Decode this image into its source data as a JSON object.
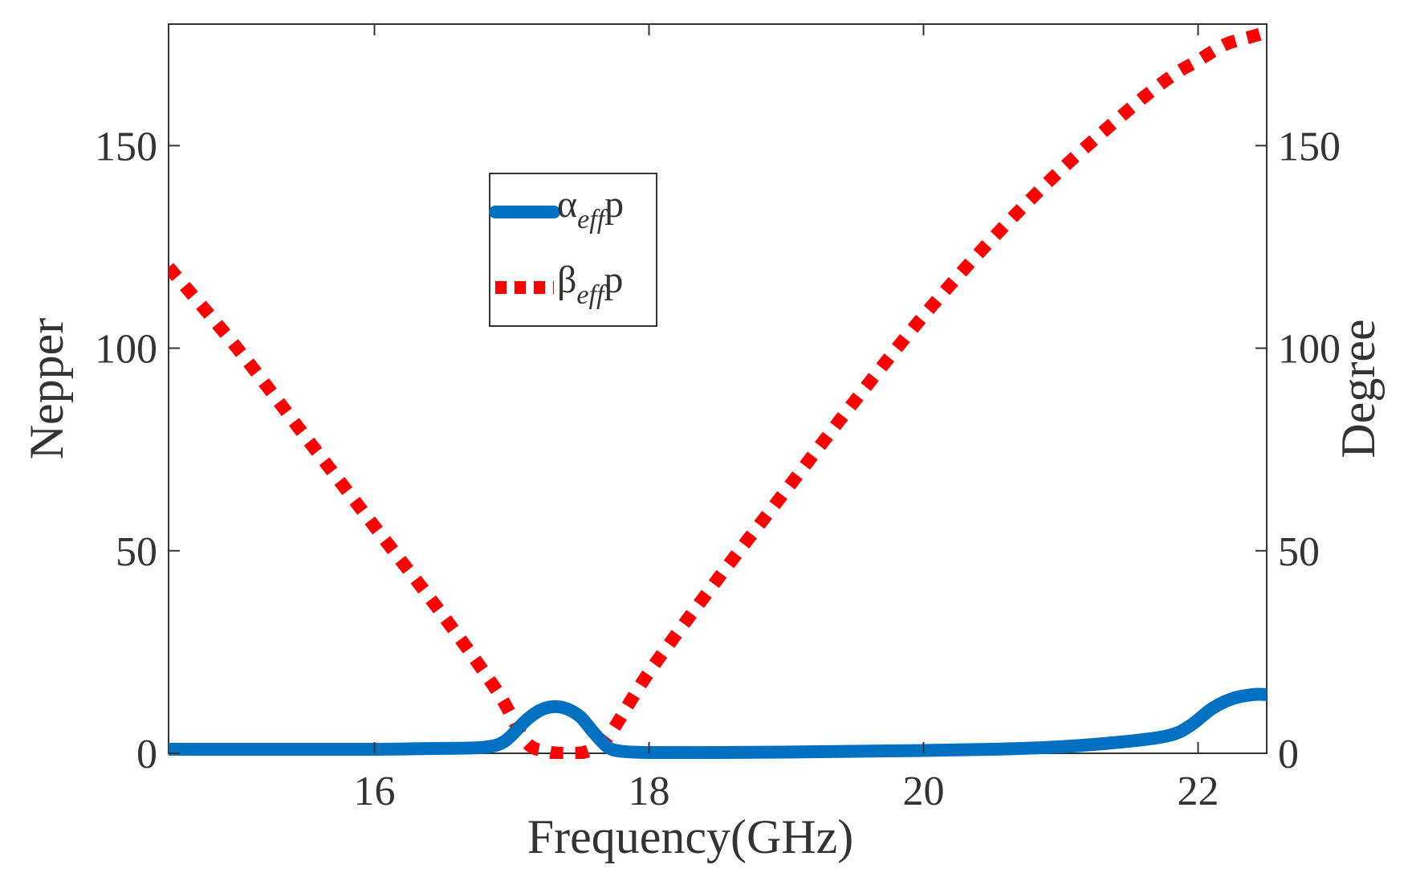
{
  "chart_data": {
    "type": "line",
    "title": "",
    "xlabel": "Frequency(GHz)",
    "ylabel": "Nepper",
    "y2label": "Degree",
    "xlim": [
      14.5,
      22.5
    ],
    "ylim": [
      0,
      180
    ],
    "y2lim": [
      0,
      180
    ],
    "xticks": [
      16,
      18,
      20,
      22
    ],
    "yticks": [
      0,
      50,
      100,
      150
    ],
    "y2ticks": [
      0,
      50,
      100,
      150
    ],
    "legend_position": "upper-center",
    "grid": false,
    "colors": {
      "alpha": "#0070C0",
      "beta": "#FF0000",
      "axis": "#333333"
    },
    "series": [
      {
        "name": "alpha_eff p",
        "label_main": "α",
        "label_sub": "eff",
        "label_tail": "p",
        "axis": "left",
        "style": "solid",
        "x": [
          14.5,
          15.0,
          15.5,
          16.0,
          16.5,
          16.8,
          16.95,
          17.1,
          17.2,
          17.3,
          17.4,
          17.5,
          17.6,
          17.7,
          17.8,
          18.0,
          18.5,
          19.0,
          19.5,
          20.0,
          20.5,
          21.0,
          21.5,
          21.8,
          21.95,
          22.1,
          22.25,
          22.4,
          22.5
        ],
        "y": [
          1,
          1,
          1,
          1,
          1.2,
          1.5,
          3,
          8,
          10.5,
          11.5,
          11,
          9,
          5,
          1.5,
          0.5,
          0.2,
          0.2,
          0.3,
          0.5,
          0.7,
          1,
          1.6,
          3,
          4.5,
          7,
          11,
          13.5,
          14.5,
          14.5
        ]
      },
      {
        "name": "beta_eff p",
        "label_main": "β",
        "label_sub": "eff",
        "label_tail": "p",
        "axis": "right",
        "style": "dotted",
        "x": [
          14.5,
          15.0,
          15.5,
          16.0,
          16.5,
          16.9,
          17.1,
          17.25,
          17.4,
          17.55,
          17.7,
          18.0,
          18.5,
          19.0,
          19.5,
          20.0,
          20.5,
          21.0,
          21.5,
          21.8,
          22.0,
          22.2,
          22.4,
          22.5
        ],
        "y": [
          120,
          100,
          78,
          56,
          34,
          15,
          3,
          0.5,
          0,
          0.5,
          4,
          20,
          43,
          65,
          87,
          108,
          127,
          144,
          159,
          167,
          171,
          175,
          177,
          178
        ]
      }
    ]
  }
}
